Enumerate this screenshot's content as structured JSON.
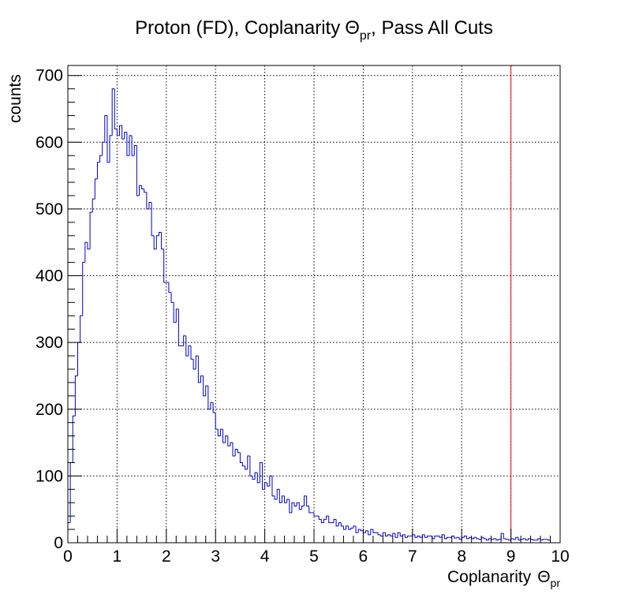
{
  "chart_data": {
    "type": "histogram",
    "title": {
      "main": "Proton (FD), Coplanarity",
      "symbol": "Θ",
      "subscript": "pr",
      "tail": ", Pass All Cuts"
    },
    "xlabel": {
      "main": "Coplanarity",
      "symbol": "Θ",
      "subscript": "pr"
    },
    "ylabel": "counts",
    "xlim": [
      0,
      10
    ],
    "ylim": [
      0,
      715
    ],
    "grid": true,
    "x_ticks": [
      "0",
      "1",
      "2",
      "3",
      "4",
      "5",
      "6",
      "7",
      "8",
      "9",
      "10"
    ],
    "y_ticks": [
      "0",
      "100",
      "200",
      "300",
      "400",
      "500",
      "600",
      "700"
    ],
    "bin_width": 0.05,
    "counts": [
      30,
      120,
      190,
      250,
      300,
      340,
      420,
      450,
      440,
      495,
      515,
      545,
      570,
      580,
      600,
      640,
      570,
      610,
      680,
      620,
      610,
      625,
      605,
      615,
      580,
      610,
      580,
      595,
      520,
      535,
      530,
      525,
      500,
      510,
      460,
      440,
      460,
      465,
      440,
      390,
      390,
      375,
      360,
      330,
      350,
      295,
      295,
      310,
      280,
      295,
      275,
      260,
      280,
      240,
      250,
      220,
      235,
      200,
      210,
      195,
      170,
      160,
      170,
      150,
      160,
      145,
      150,
      130,
      140,
      135,
      120,
      115,
      110,
      130,
      100,
      95,
      105,
      90,
      120,
      80,
      90,
      85,
      100,
      70,
      65,
      80,
      60,
      70,
      60,
      65,
      45,
      60,
      55,
      60,
      50,
      55,
      70,
      55,
      45,
      45,
      40,
      40,
      35,
      30,
      35,
      40,
      30,
      30,
      35,
      25,
      30,
      25,
      20,
      25,
      20,
      22,
      25,
      15,
      20,
      18,
      15,
      18,
      12,
      20,
      15,
      15,
      12,
      10,
      15,
      10,
      12,
      10,
      14,
      8,
      15,
      10,
      12,
      8,
      10,
      10,
      12,
      8,
      10,
      8,
      12,
      8,
      10,
      10,
      6,
      10,
      10,
      8,
      12,
      6,
      8,
      8,
      10,
      7,
      8,
      5,
      8,
      10,
      6,
      8,
      6,
      8,
      6,
      5,
      8,
      6,
      4,
      6,
      5,
      6,
      4,
      5,
      14,
      6,
      5,
      4,
      6,
      5,
      8,
      4,
      5,
      6,
      4,
      6,
      5,
      4,
      4,
      6,
      4,
      5,
      5,
      4
    ],
    "series": [
      {
        "color": "#0000cc",
        "line_style": "step"
      }
    ],
    "cut_line": {
      "x": 9,
      "color": "#ff0000"
    }
  }
}
